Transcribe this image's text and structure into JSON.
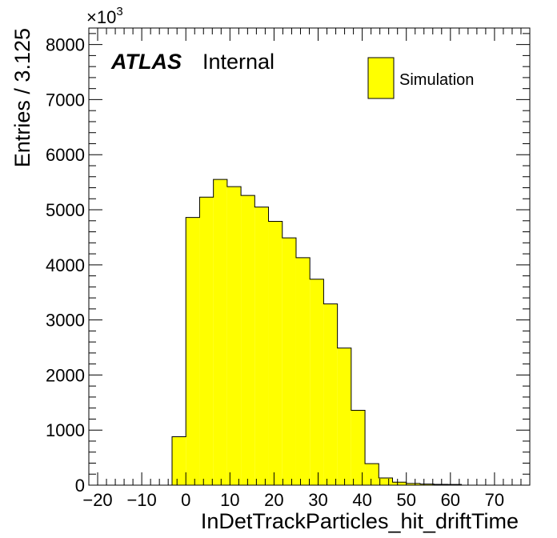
{
  "chart_data": {
    "type": "bar",
    "histogram": true,
    "xlabel": "InDetTrackParticles_hit_driftTime",
    "ylabel": "Entries / 3.125",
    "y_multiplier_label": "×10",
    "y_multiplier_exponent": "3",
    "xlim": [
      -22,
      78
    ],
    "ylim": [
      0,
      8300
    ],
    "x_ticks": [
      -20,
      -10,
      0,
      10,
      20,
      30,
      40,
      50,
      60,
      70
    ],
    "x_tick_labels": [
      "−20",
      "−10",
      "0",
      "10",
      "20",
      "30",
      "40",
      "50",
      "60",
      "70"
    ],
    "y_ticks": [
      0,
      1000,
      2000,
      3000,
      4000,
      5000,
      6000,
      7000,
      8000
    ],
    "y_tick_labels": [
      "0",
      "1000",
      "2000",
      "3000",
      "4000",
      "5000",
      "6000",
      "7000",
      "8000"
    ],
    "bin_width": 3.125,
    "bin_start": -3.125,
    "values": [
      880,
      4860,
      5230,
      5550,
      5420,
      5260,
      5050,
      4790,
      4490,
      4130,
      3740,
      3290,
      2490,
      1360,
      390,
      130,
      55,
      30,
      20,
      15,
      12
    ],
    "series": [
      {
        "name": "Simulation",
        "color": "#ffff00",
        "edge_color": "#000000"
      }
    ],
    "legend_position": "top-right",
    "annotations": {
      "atlas": "ATLAS",
      "status": "Internal"
    },
    "grid": false
  }
}
